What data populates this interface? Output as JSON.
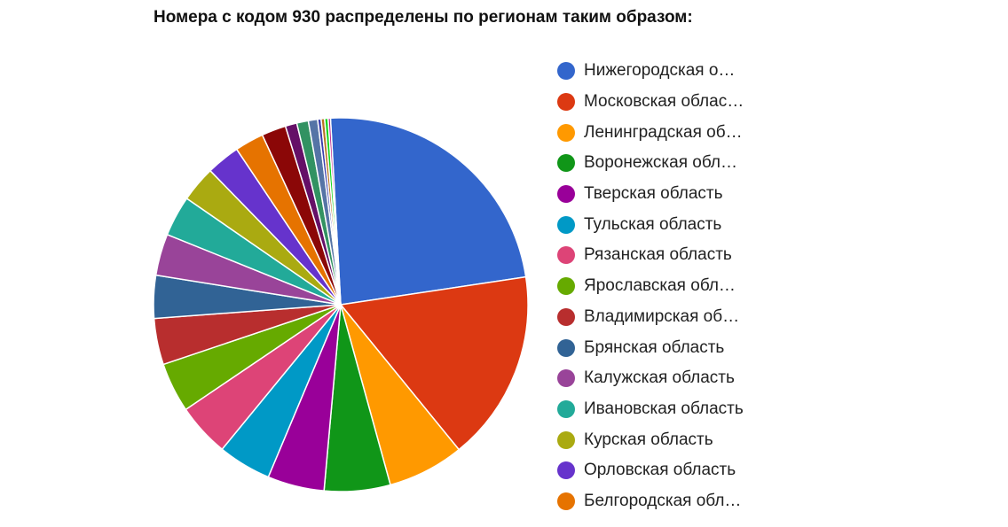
{
  "chart_data": {
    "type": "pie",
    "title": "Номера с кодом 930 распределены по регионам таким образом:",
    "legend_position": "right",
    "slices": [
      {
        "label": "Нижегородская о…",
        "value": 23.5,
        "color": "#3366cc"
      },
      {
        "label": "Московская облас…",
        "value": 16.5,
        "color": "#dc3912"
      },
      {
        "label": "Ленинградская об…",
        "value": 6.6,
        "color": "#ff9900"
      },
      {
        "label": "Воронежская обл…",
        "value": 5.7,
        "color": "#109618"
      },
      {
        "label": "Тверская область",
        "value": 4.9,
        "color": "#990099"
      },
      {
        "label": "Тульская область",
        "value": 4.6,
        "color": "#0099c6"
      },
      {
        "label": "Рязанская область",
        "value": 4.6,
        "color": "#dd4477"
      },
      {
        "label": "Ярославская обл…",
        "value": 4.3,
        "color": "#66aa00"
      },
      {
        "label": "Владимирская об…",
        "value": 4.0,
        "color": "#b82e2e"
      },
      {
        "label": "Брянская область",
        "value": 3.7,
        "color": "#316395"
      },
      {
        "label": "Калужская область",
        "value": 3.6,
        "color": "#994499"
      },
      {
        "label": "Ивановская область",
        "value": 3.5,
        "color": "#22aa99"
      },
      {
        "label": "Курская область",
        "value": 3.1,
        "color": "#aaaa11"
      },
      {
        "label": "Орловская область",
        "value": 2.9,
        "color": "#6633cc"
      },
      {
        "label": "Белгородская обл…",
        "value": 2.5,
        "color": "#e67300"
      },
      {
        "label": "",
        "value": 2.1,
        "color": "#8b0707"
      },
      {
        "label": "",
        "value": 1.0,
        "color": "#651067"
      },
      {
        "label": "",
        "value": 1.0,
        "color": "#329262"
      },
      {
        "label": "",
        "value": 0.8,
        "color": "#5574a6"
      },
      {
        "label": "",
        "value": 0.3,
        "color": "#3b3eac"
      },
      {
        "label": "",
        "value": 0.3,
        "color": "#b77322"
      },
      {
        "label": "",
        "value": 0.3,
        "color": "#16d620"
      },
      {
        "label": "",
        "value": 0.2,
        "color": "#b91383"
      }
    ]
  }
}
